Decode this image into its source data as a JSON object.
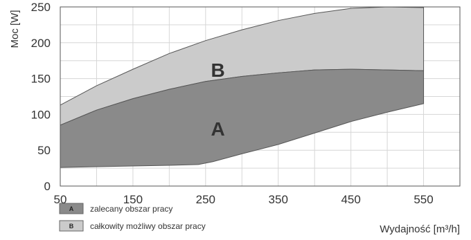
{
  "chart_data": {
    "type": "area",
    "xlabel": "Wydajność [m³/h]",
    "ylabel": "Moc [W]",
    "xlim": [
      50,
      600
    ],
    "ylim": [
      0,
      250
    ],
    "x_ticks": [
      50,
      150,
      250,
      350,
      450,
      550
    ],
    "y_ticks": [
      0,
      50,
      100,
      150,
      200,
      250
    ],
    "grid": true,
    "legend_position": "bottom-left",
    "series": [
      {
        "key": "B",
        "name": "całkowity możliwy obszar pracy",
        "color": "#cbcbcb",
        "upper": [
          [
            50,
            113
          ],
          [
            100,
            140
          ],
          [
            150,
            163
          ],
          [
            200,
            185
          ],
          [
            250,
            203
          ],
          [
            300,
            218
          ],
          [
            350,
            231
          ],
          [
            400,
            241
          ],
          [
            450,
            248
          ],
          [
            500,
            250
          ],
          [
            550,
            249
          ]
        ],
        "lower": [
          [
            50,
            85
          ],
          [
            100,
            106
          ],
          [
            150,
            122
          ],
          [
            200,
            135
          ],
          [
            250,
            146
          ],
          [
            300,
            153
          ],
          [
            350,
            158
          ],
          [
            400,
            162
          ],
          [
            450,
            163
          ],
          [
            500,
            162
          ],
          [
            550,
            161
          ]
        ]
      },
      {
        "key": "A",
        "name": "zalecany obszar pracy",
        "color": "#8a8a8a",
        "upper": [
          [
            50,
            85
          ],
          [
            100,
            106
          ],
          [
            150,
            122
          ],
          [
            200,
            135
          ],
          [
            250,
            146
          ],
          [
            300,
            153
          ],
          [
            350,
            158
          ],
          [
            400,
            162
          ],
          [
            450,
            163
          ],
          [
            500,
            162
          ],
          [
            550,
            161
          ]
        ],
        "lower": [
          [
            50,
            26
          ],
          [
            100,
            27
          ],
          [
            150,
            28
          ],
          [
            200,
            29
          ],
          [
            240,
            30
          ],
          [
            260,
            34
          ],
          [
            300,
            45
          ],
          [
            350,
            58
          ],
          [
            400,
            74
          ],
          [
            450,
            90
          ],
          [
            500,
            103
          ],
          [
            550,
            115
          ]
        ]
      }
    ],
    "region_labels": [
      {
        "text": "B",
        "x": 225,
        "y": 162
      },
      {
        "text": "A",
        "x": 225,
        "y": 80
      }
    ]
  }
}
